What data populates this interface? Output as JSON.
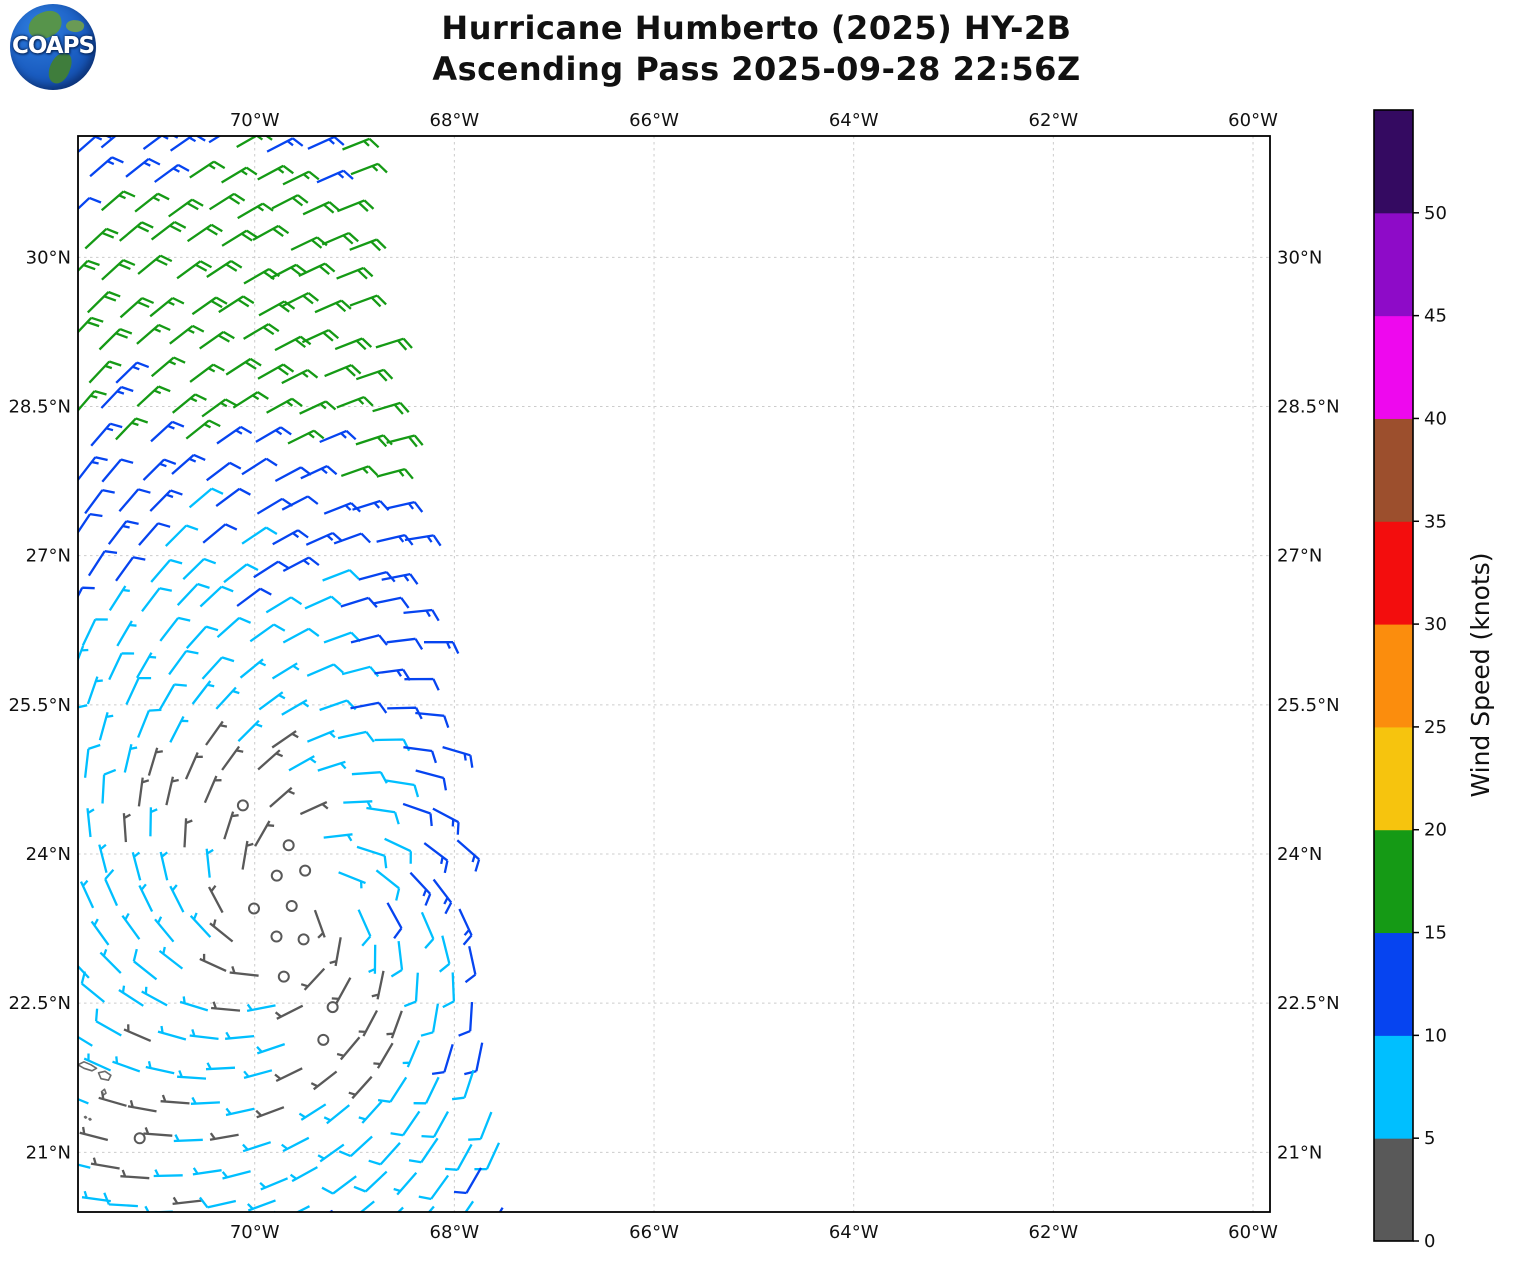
{
  "header": {
    "logo_text": "COAPS",
    "title_line1": "Hurricane Humberto (2025) HY-2B",
    "title_line2": "Ascending Pass 2025-09-28 22:56Z"
  },
  "chart_data": {
    "type": "wind_barb_map",
    "title": "Hurricane Humberto (2025) HY-2B Ascending Pass 2025-09-28 22:56Z",
    "grid_style": "dashed",
    "map_extent": {
      "lon_west": 71.77,
      "lon_east": 59.83,
      "lat_north": 31.22,
      "lat_south": 20.4
    },
    "x_ticks": [
      {
        "lon": 70,
        "label": "70°W"
      },
      {
        "lon": 68,
        "label": "68°W"
      },
      {
        "lon": 66,
        "label": "66°W"
      },
      {
        "lon": 64,
        "label": "64°W"
      },
      {
        "lon": 62,
        "label": "62°W"
      },
      {
        "lon": 60,
        "label": "60°W"
      }
    ],
    "y_ticks": [
      {
        "lat": 30,
        "label": "30°N"
      },
      {
        "lat": 28.5,
        "label": "28.5°N"
      },
      {
        "lat": 27,
        "label": "27°N"
      },
      {
        "lat": 25.5,
        "label": "25.5°N"
      },
      {
        "lat": 24,
        "label": "24°N"
      },
      {
        "lat": 22.5,
        "label": "22.5°N"
      },
      {
        "lat": 21,
        "label": "21°N"
      }
    ],
    "colorbar": {
      "label": "Wind Speed (knots)",
      "tick_labels": [
        "0",
        "5",
        "10",
        "15",
        "20",
        "25",
        "30",
        "35",
        "40",
        "45",
        "50"
      ],
      "bins": [
        {
          "from": 0,
          "to": 5,
          "color": "#595959"
        },
        {
          "from": 5,
          "to": 10,
          "color": "#00bfff"
        },
        {
          "from": 10,
          "to": 15,
          "color": "#0644f0"
        },
        {
          "from": 15,
          "to": 20,
          "color": "#159a15"
        },
        {
          "from": 20,
          "to": 25,
          "color": "#f6c40e"
        },
        {
          "from": 25,
          "to": 30,
          "color": "#fb8d0d"
        },
        {
          "from": 30,
          "to": 35,
          "color": "#f30d0d"
        },
        {
          "from": 35,
          "to": 40,
          "color": "#9c4f2d"
        },
        {
          "from": 40,
          "to": 45,
          "color": "#ee08ee"
        },
        {
          "from": 45,
          "to": 50,
          "color": "#8e0bc8"
        },
        {
          "from": 50,
          "to": 55,
          "color": "#340a61"
        }
      ]
    },
    "swath": {
      "grid_spacing_deg": 0.333,
      "edge_lon_at_top": 69.08,
      "edge_lon_slope_per_deg_lat": 0.157
    },
    "storm": {
      "name": "Humberto",
      "center_lon_w": 69.55,
      "center_lat_n": 23.45,
      "rotation": "counterclockwise",
      "inflow_deg": 25,
      "calm_core_track": [
        [
          69.95,
          24.45
        ],
        [
          69.55,
          23.45
        ],
        [
          69.1,
          22.3
        ]
      ],
      "secondary_calm_center": {
        "lon_w": 71.15,
        "lat_n": 21.05,
        "sigma_deg": 0.7,
        "depth_kt": 6
      },
      "speed_profile_r_deg_kt": [
        [
          0,
          1.5
        ],
        [
          0.3,
          2.5
        ],
        [
          0.7,
          4.5
        ],
        [
          1.5,
          6.5
        ],
        [
          2.6,
          8.5
        ],
        [
          3.6,
          11
        ],
        [
          4.4,
          14
        ],
        [
          5.2,
          16.3
        ],
        [
          5.8,
          16.3
        ],
        [
          6.3,
          12
        ],
        [
          7.5,
          10.5
        ],
        [
          12,
          10.5
        ]
      ],
      "east_side_boost": {
        "center_azimuth_deg": 15,
        "width_deg": 70,
        "max_factor": 1.0
      },
      "speed_clamp_kt": [
        0.6,
        19.3
      ],
      "barb_convention": "full barb = 10 kt, half barb = 5 kt, circle = calm"
    },
    "islands": [
      [
        [
          71.77,
          21.88
        ],
        [
          71.71,
          21.91
        ],
        [
          71.64,
          21.88
        ],
        [
          71.585,
          21.845
        ],
        [
          71.63,
          21.82
        ],
        [
          71.71,
          21.845
        ],
        [
          71.77,
          21.88
        ]
      ],
      [
        [
          71.565,
          21.8
        ],
        [
          71.5,
          21.815
        ],
        [
          71.44,
          21.775
        ],
        [
          71.465,
          21.725
        ],
        [
          71.54,
          21.74
        ],
        [
          71.565,
          21.8
        ]
      ],
      [
        [
          71.535,
          21.61
        ],
        [
          71.505,
          21.635
        ],
        [
          71.49,
          21.595
        ],
        [
          71.52,
          21.575
        ],
        [
          71.535,
          21.61
        ]
      ],
      [
        [
          71.705,
          21.355
        ],
        [
          71.695,
          21.345
        ],
        [
          71.685,
          21.35
        ],
        [
          71.695,
          21.36
        ],
        [
          71.705,
          21.355
        ]
      ],
      [
        [
          71.66,
          21.335
        ],
        [
          71.65,
          21.325
        ],
        [
          71.64,
          21.33
        ],
        [
          71.65,
          21.34
        ],
        [
          71.66,
          21.335
        ]
      ]
    ]
  }
}
